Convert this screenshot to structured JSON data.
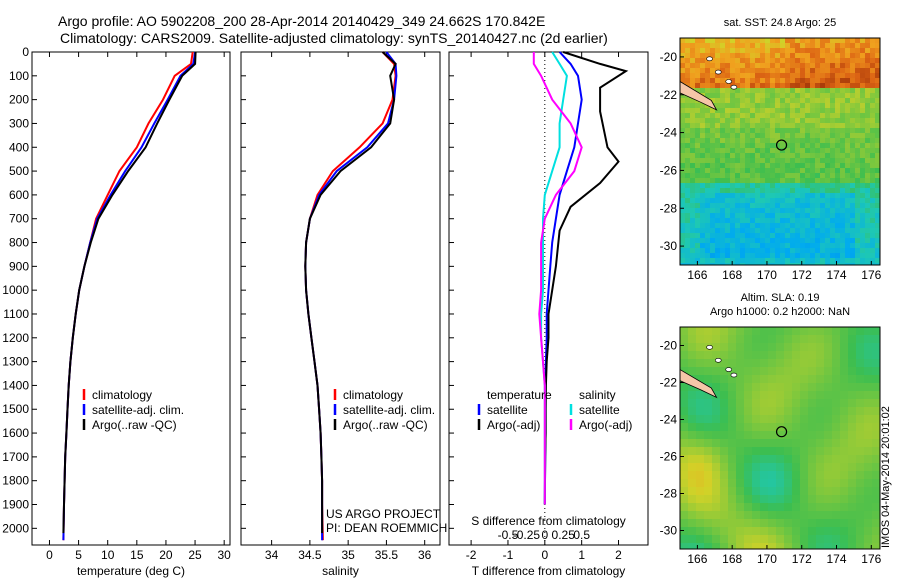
{
  "header": {
    "title_line1": "Argo profile: AO 5902208_200 28-Apr-2014 20140429_349 24.662S 170.842E",
    "title_line2": "Climatology: CARS2009. Satellite-adjusted climatology: synTS_20140427.nc (2d earlier)"
  },
  "colors": {
    "climatology": "#ff0000",
    "satellite": "#0000ff",
    "argo": "#000000",
    "sal_satellite": "#00e0e0",
    "sal_argo": "#ff00ff"
  },
  "footer": {
    "credit1": "US ARGO PROJECT",
    "credit2": "PI: DEAN ROEMMICH",
    "timestamp": "IMOS 04-May-2014 20:01:02"
  },
  "chart_data": [
    {
      "type": "line",
      "xlabel": "temperature (deg C)",
      "ylabel": "",
      "xlim": [
        -3,
        31
      ],
      "ylim": [
        2070,
        0
      ],
      "xticks": [
        0,
        5,
        10,
        15,
        20,
        25,
        30
      ],
      "yticks": [
        0,
        100,
        200,
        300,
        400,
        500,
        600,
        700,
        800,
        900,
        1000,
        1100,
        1200,
        1300,
        1400,
        1500,
        1600,
        1700,
        1800,
        1900,
        2000
      ],
      "legend": [
        "climatology",
        "satellite-adj. clim.",
        "Argo(..raw -QC)"
      ],
      "legend_placement": "bottom-right",
      "series": [
        {
          "name": "climatology",
          "color": "#ff0000",
          "x": [
            24.6,
            24.3,
            21.5,
            19.5,
            17.0,
            15.0,
            12.0,
            10.0,
            8.0,
            7.0,
            6.0,
            5.1,
            4.5,
            4.0,
            3.6,
            3.3,
            3.1,
            2.9,
            2.7,
            2.6,
            2.5,
            2.4
          ],
          "y": [
            0,
            50,
            100,
            200,
            300,
            400,
            500,
            600,
            700,
            800,
            900,
            1000,
            1100,
            1200,
            1300,
            1400,
            1500,
            1600,
            1700,
            1800,
            1900,
            2050
          ]
        },
        {
          "name": "satellite-adj. clim.",
          "color": "#0000ff",
          "x": [
            25.0,
            24.7,
            22.5,
            20.3,
            18.0,
            15.8,
            13.0,
            10.5,
            8.2,
            7.0,
            6.0,
            5.1,
            4.5,
            4.0,
            3.6,
            3.3,
            3.1,
            2.9,
            2.7,
            2.6,
            2.5,
            2.4
          ],
          "y": [
            0,
            50,
            100,
            200,
            300,
            400,
            500,
            600,
            700,
            800,
            900,
            1000,
            1100,
            1200,
            1300,
            1400,
            1500,
            1600,
            1700,
            1800,
            1900,
            2050
          ]
        },
        {
          "name": "Argo(..raw -QC)",
          "color": "#000000",
          "x": [
            25.1,
            25.0,
            22.8,
            20.6,
            18.5,
            16.5,
            13.5,
            10.8,
            8.4,
            7.1,
            6.0,
            5.1,
            4.5,
            4.0,
            3.6,
            3.3,
            3.1,
            2.9,
            2.7,
            2.6,
            2.5,
            2.4
          ],
          "y": [
            0,
            50,
            100,
            200,
            300,
            400,
            500,
            600,
            700,
            800,
            900,
            1000,
            1100,
            1200,
            1300,
            1400,
            1500,
            1600,
            1700,
            1800,
            1900,
            2020
          ]
        }
      ]
    },
    {
      "type": "line",
      "xlabel": "salinity",
      "xlim": [
        33.6,
        36.2
      ],
      "ylim": [
        2070,
        0
      ],
      "xticks": [
        34,
        34.5,
        35,
        35.5,
        36
      ],
      "legend": [
        "climatology",
        "satellite-adj. clim.",
        "Argo(..raw -QC)"
      ],
      "legend_placement": "bottom-right",
      "series": [
        {
          "name": "climatology",
          "color": "#ff0000",
          "x": [
            35.45,
            35.6,
            35.62,
            35.58,
            35.45,
            35.15,
            34.8,
            34.6,
            34.5,
            34.45,
            34.44,
            34.45,
            34.48,
            34.52,
            34.56,
            34.6,
            34.62,
            34.64,
            34.65,
            34.66,
            34.66,
            34.67
          ],
          "y": [
            0,
            50,
            100,
            200,
            300,
            400,
            500,
            600,
            700,
            800,
            900,
            1000,
            1100,
            1200,
            1300,
            1400,
            1500,
            1600,
            1700,
            1800,
            1900,
            2050
          ]
        },
        {
          "name": "satellite-adj. clim.",
          "color": "#0000ff",
          "x": [
            35.5,
            35.62,
            35.63,
            35.6,
            35.52,
            35.25,
            34.85,
            34.62,
            34.5,
            34.45,
            34.44,
            34.45,
            34.48,
            34.52,
            34.56,
            34.6,
            34.62,
            34.64,
            34.65,
            34.66,
            34.66,
            34.66
          ],
          "y": [
            0,
            50,
            100,
            200,
            300,
            400,
            500,
            600,
            700,
            800,
            900,
            1000,
            1100,
            1200,
            1300,
            1400,
            1500,
            1600,
            1700,
            1800,
            1900,
            2050
          ]
        },
        {
          "name": "Argo(..raw -QC)",
          "color": "#000000",
          "x": [
            35.45,
            35.62,
            35.55,
            35.6,
            35.55,
            35.3,
            34.9,
            34.64,
            34.5,
            34.45,
            34.44,
            34.45,
            34.48,
            34.52,
            34.56,
            34.6,
            34.62,
            34.64,
            34.65,
            34.66,
            34.66,
            34.66
          ],
          "y": [
            0,
            50,
            100,
            200,
            300,
            400,
            500,
            600,
            700,
            800,
            900,
            1000,
            1100,
            1200,
            1300,
            1400,
            1500,
            1600,
            1700,
            1800,
            1900,
            2020
          ]
        }
      ]
    },
    {
      "type": "line",
      "xlabel_top": "S difference from climatology",
      "xlabel": "T difference from climatology",
      "xlim": [
        -2.6,
        2.8
      ],
      "ylim": [
        2070,
        0
      ],
      "xticks": [
        -2,
        -1,
        0,
        1,
        2
      ],
      "xticklabels": [
        "-2",
        "-1",
        "0",
        "1",
        "2"
      ],
      "xticks_top": [
        -1.0,
        -0.5,
        0,
        0.5,
        1.0
      ],
      "xticklabels_top": [
        "-0.5",
        "-0.25",
        "0",
        "0.25",
        "0.5"
      ],
      "legend": [
        "temperature",
        "satellite",
        "Argo(-adj)",
        "salinity",
        "satellite",
        "Argo(-adj)"
      ],
      "legend_placement": "bottom",
      "series": [
        {
          "name": "satellite",
          "color": "#0000ff",
          "x": [
            0.4,
            0.7,
            0.9,
            1.0,
            0.9,
            0.8,
            0.6,
            0.4,
            0.3,
            0.2,
            0.15,
            0.1,
            0.05,
            0.05,
            0.03,
            0.02,
            0.02,
            0.02,
            0.01,
            0.0
          ],
          "y": [
            0,
            50,
            100,
            200,
            300,
            400,
            500,
            600,
            700,
            800,
            900,
            1000,
            1100,
            1200,
            1300,
            1400,
            1500,
            1600,
            1700,
            1900
          ]
        },
        {
          "name": "Argo(-adj)",
          "color": "#000000",
          "x": [
            0.5,
            1.5,
            2.2,
            1.5,
            1.5,
            1.7,
            2.0,
            1.5,
            0.7,
            0.4,
            0.3,
            0.2,
            0.1,
            0.1,
            0.05,
            0.03,
            0.02,
            0.02,
            0.01,
            0.0
          ],
          "y": [
            0,
            50,
            80,
            150,
            250,
            400,
            460,
            550,
            650,
            750,
            900,
            1000,
            1100,
            1200,
            1300,
            1400,
            1500,
            1600,
            1700,
            1900
          ]
        },
        {
          "name": "satellite",
          "color": "#00e0e0",
          "x": [
            0.2,
            0.4,
            0.6,
            0.5,
            0.4,
            0.4,
            0.2,
            0.0,
            -0.05,
            -0.05,
            -0.05,
            -0.05,
            -0.1,
            -0.1,
            -0.05,
            0.0,
            0.0,
            0.0,
            0.0,
            0.0
          ],
          "y": [
            0,
            50,
            100,
            200,
            300,
            400,
            500,
            600,
            700,
            800,
            900,
            1000,
            1100,
            1200,
            1300,
            1400,
            1500,
            1600,
            1700,
            1900
          ]
        },
        {
          "name": "Argo(-adj)",
          "color": "#ff00ff",
          "x": [
            -0.3,
            -0.3,
            -0.1,
            0.2,
            0.7,
            1.0,
            0.8,
            0.3,
            0.0,
            -0.1,
            -0.1,
            -0.1,
            -0.15,
            -0.1,
            -0.05,
            0.0,
            0.0,
            0.0,
            0.0,
            0.0
          ],
          "y": [
            0,
            50,
            100,
            200,
            300,
            400,
            500,
            600,
            700,
            800,
            900,
            1000,
            1100,
            1200,
            1300,
            1400,
            1500,
            1600,
            1700,
            1900
          ]
        }
      ]
    },
    {
      "type": "heatmap",
      "title": "sat. SST: 24.8 Argo: 25",
      "xlim": [
        165,
        176.5
      ],
      "ylim": [
        -31,
        -19
      ],
      "xticks": [
        166,
        168,
        170,
        172,
        174,
        176
      ],
      "yticks": [
        -20,
        -22,
        -24,
        -26,
        -28,
        -30
      ],
      "marker": {
        "x": 170.84,
        "y": -24.66
      }
    },
    {
      "type": "heatmap",
      "title": "Altim. SLA: 0.19",
      "subtitle": "Argo h1000: 0.2 h2000: NaN",
      "xlim": [
        165,
        176.5
      ],
      "ylim": [
        -31,
        -19
      ],
      "xticks": [
        166,
        168,
        170,
        172,
        174,
        176
      ],
      "yticks": [
        -20,
        -22,
        -24,
        -26,
        -28,
        -30
      ],
      "marker": {
        "x": 170.84,
        "y": -24.66
      }
    }
  ]
}
